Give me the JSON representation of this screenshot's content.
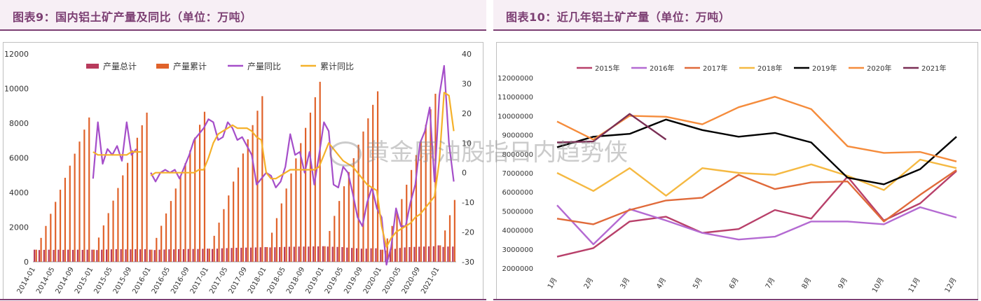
{
  "left": {
    "title": "图表9：国内铝土矿产量及同比（单位：万吨）",
    "chart_data": {
      "type": "bar",
      "legend": [
        "产量总计",
        "产量累计",
        "产量同比",
        "累计同比"
      ],
      "legend_position": "top",
      "colors": {
        "monthly": "#b83a5c",
        "cumulative": "#e0622a",
        "yoy": "#a54ec9",
        "cum_yoy": "#f5b12a"
      },
      "y_left": [
        0,
        12000
      ],
      "y_left_ticks": [
        "0",
        "2000",
        "4000",
        "6000",
        "8000",
        "10000",
        "12000"
      ],
      "y_right": [
        -30,
        40
      ],
      "y_right_ticks": [
        "-30",
        "-20",
        "-10",
        "0",
        "10",
        "20",
        "30",
        "40"
      ],
      "x_tick_labels": [
        "2014-01",
        "2014-05",
        "2014-09",
        "2015-01",
        "2015-05",
        "2015-09",
        "2016-01",
        "2016-05",
        "2016-09",
        "2017-01",
        "2017-05",
        "2017-09",
        "2018-01",
        "2018-05",
        "2018-09",
        "2019-01",
        "2019-05",
        "2019-09",
        "2020-01",
        "2020-05",
        "2020-09",
        "2021-01"
      ],
      "categories": [
        "2014-01",
        "2014-02",
        "2014-03",
        "2014-04",
        "2014-05",
        "2014-06",
        "2014-07",
        "2014-08",
        "2014-09",
        "2014-10",
        "2014-11",
        "2014-12",
        "2015-01",
        "2015-02",
        "2015-03",
        "2015-04",
        "2015-05",
        "2015-06",
        "2015-07",
        "2015-08",
        "2015-09",
        "2015-10",
        "2015-11",
        "2015-12",
        "2016-01",
        "2016-02",
        "2016-03",
        "2016-04",
        "2016-05",
        "2016-06",
        "2016-07",
        "2016-08",
        "2016-09",
        "2016-10",
        "2016-11",
        "2016-12",
        "2017-01",
        "2017-02",
        "2017-03",
        "2017-04",
        "2017-05",
        "2017-06",
        "2017-07",
        "2017-08",
        "2017-09",
        "2017-10",
        "2017-11",
        "2017-12",
        "2018-01",
        "2018-02",
        "2018-03",
        "2018-04",
        "2018-05",
        "2018-06",
        "2018-07",
        "2018-08",
        "2018-09",
        "2018-10",
        "2018-11",
        "2018-12",
        "2019-01",
        "2019-02",
        "2019-03",
        "2019-04",
        "2019-05",
        "2019-06",
        "2019-07",
        "2019-08",
        "2019-09",
        "2019-10",
        "2019-11",
        "2019-12",
        "2020-01",
        "2020-02",
        "2020-03",
        "2020-04",
        "2020-05",
        "2020-06",
        "2020-07",
        "2020-08",
        "2020-09",
        "2020-10",
        "2020-11",
        "2020-12",
        "2021-01",
        "2021-02",
        "2021-03",
        "2021-04"
      ],
      "series": [
        {
          "name": "产量总计",
          "kind": "bar",
          "axis": "left",
          "values": [
            700,
            680,
            690,
            700,
            690,
            700,
            690,
            700,
            690,
            700,
            690,
            700,
            700,
            680,
            700,
            710,
            720,
            730,
            730,
            720,
            720,
            730,
            720,
            730,
            700,
            680,
            700,
            710,
            720,
            720,
            730,
            730,
            740,
            740,
            740,
            750,
            760,
            740,
            760,
            780,
            790,
            800,
            810,
            810,
            820,
            820,
            830,
            840,
            850,
            830,
            840,
            850,
            860,
            870,
            870,
            880,
            880,
            880,
            890,
            890,
            900,
            880,
            870,
            860,
            850,
            820,
            800,
            780,
            760,
            760,
            780,
            780,
            700,
            650,
            720,
            750,
            800,
            830,
            850,
            860,
            870,
            880,
            890,
            900,
            950,
            860,
            880,
            880
          ]
        },
        {
          "name": "产量累计",
          "kind": "bar",
          "axis": "left",
          "values": [
            700,
            1380,
            2070,
            2770,
            3460,
            4160,
            4850,
            5550,
            6240,
            6940,
            7630,
            8330,
            700,
            1400,
            2100,
            2810,
            3530,
            4260,
            4990,
            5710,
            6430,
            7160,
            7880,
            8610,
            700,
            1380,
            2080,
            2790,
            3510,
            4230,
            4960,
            5690,
            6430,
            7170,
            7910,
            8660,
            760,
            1500,
            2260,
            3040,
            3830,
            4630,
            5440,
            6250,
            7070,
            7890,
            8720,
            9560,
            850,
            1680,
            2520,
            3370,
            4230,
            5100,
            5970,
            6850,
            7730,
            8610,
            9500,
            10390,
            900,
            1780,
            2650,
            3510,
            4360,
            5180,
            5980,
            6760,
            7520,
            8280,
            9060,
            9840,
            700,
            1350,
            2070,
            2820,
            3620,
            4450,
            5300,
            6160,
            7030,
            7910,
            8800,
            9700,
            950,
            1810,
            2690,
            3570
          ]
        },
        {
          "name": "产量同比",
          "kind": "line",
          "axis": "right",
          "values": [
            null,
            null,
            null,
            null,
            null,
            null,
            null,
            null,
            null,
            null,
            null,
            null,
            -2,
            17,
            3,
            8,
            6,
            9,
            4,
            17,
            6,
            8,
            null,
            null,
            0,
            -3,
            0,
            1,
            0,
            1,
            -2,
            2,
            6,
            11,
            13,
            15,
            18,
            17,
            11,
            12,
            17,
            15,
            11,
            12,
            9,
            6,
            -4,
            -2,
            0,
            -1,
            -5,
            -3,
            2,
            13,
            6,
            7,
            0,
            7,
            -4,
            6,
            17,
            14,
            -4,
            -5,
            2,
            0,
            -7,
            -15,
            -18,
            -10,
            -5,
            -12,
            -15,
            -31,
            -25,
            -12,
            -18,
            -18,
            -10,
            -4,
            10,
            14,
            22,
            -3,
            26,
            36,
            10,
            -3
          ]
        },
        {
          "name": "累计同比",
          "kind": "line",
          "axis": "right",
          "values": [
            null,
            null,
            null,
            null,
            null,
            null,
            null,
            null,
            null,
            null,
            null,
            null,
            7,
            6,
            6,
            6,
            6,
            6,
            6,
            6,
            7,
            7,
            7,
            null,
            -1,
            0,
            0,
            0,
            0,
            0,
            0,
            0,
            0,
            0,
            1,
            1,
            5,
            10,
            13,
            14,
            15,
            16,
            15,
            15,
            15,
            14,
            12,
            11,
            0,
            -2,
            -2,
            -1,
            0,
            1,
            1,
            1,
            1,
            1,
            1,
            2,
            6,
            10,
            8,
            6,
            4,
            3,
            2,
            0,
            -2,
            -4,
            -5,
            -6,
            -18,
            -25,
            -22,
            -20,
            -19,
            -18,
            -17,
            -15,
            -14,
            -12,
            -10,
            -8,
            4,
            27,
            26,
            14
          ]
        }
      ]
    }
  },
  "right": {
    "title": "图表10：近几年铝土矿产量（单位：万吨）",
    "chart_data": {
      "type": "line",
      "categories": [
        "1月",
        "2月",
        "3月",
        "4月",
        "5月",
        "6月",
        "7月",
        "8月",
        "9月",
        "10月",
        "11月",
        "12月"
      ],
      "ylim": [
        2000000,
        12000000
      ],
      "y_ticks": [
        "2000000",
        "3000000",
        "4000000",
        "5000000",
        "6000000",
        "7000000",
        "8000000",
        "9000000",
        "10000000",
        "11000000",
        "12000000"
      ],
      "legend_position": "top",
      "series": [
        {
          "name": "2015年",
          "color": "#b8406a",
          "values": [
            2600000,
            3050000,
            4450000,
            4700000,
            3850000,
            4050000,
            5050000,
            4600000,
            6800000,
            4500000,
            5400000,
            7100000
          ]
        },
        {
          "name": "2016年",
          "color": "#b46ad2",
          "values": [
            5300000,
            3250000,
            5100000,
            4500000,
            3850000,
            3500000,
            3650000,
            4450000,
            4450000,
            4300000,
            5200000,
            4650000
          ]
        },
        {
          "name": "2017年",
          "color": "#e06a3a",
          "values": [
            4600000,
            4300000,
            5050000,
            5550000,
            5700000,
            6900000,
            6150000,
            6500000,
            6550000,
            4450000,
            5850000,
            7150000
          ]
        },
        {
          "name": "2018年",
          "color": "#f5b942",
          "values": [
            7000000,
            6050000,
            7250000,
            5800000,
            7250000,
            7000000,
            6900000,
            7450000,
            6850000,
            6100000,
            7700000,
            7250000
          ]
        },
        {
          "name": "2019年",
          "color": "#000000",
          "values": [
            8350000,
            8900000,
            9050000,
            9800000,
            9250000,
            8900000,
            9100000,
            8600000,
            6750000,
            6400000,
            7200000,
            8900000
          ]
        },
        {
          "name": "2020年",
          "color": "#f58c3c",
          "values": [
            9700000,
            8750000,
            10000000,
            9950000,
            9550000,
            10450000,
            11000000,
            10350000,
            8400000,
            8050000,
            8100000,
            7600000
          ]
        },
        {
          "name": "2021年",
          "color": "#7a2f55",
          "values": [
            8600000,
            8650000,
            10100000,
            8750000,
            null,
            null,
            null,
            null,
            null,
            null,
            null,
            null
          ]
        }
      ]
    }
  },
  "watermark": {
    "text": "黄金原油股指日内趋势侠"
  }
}
